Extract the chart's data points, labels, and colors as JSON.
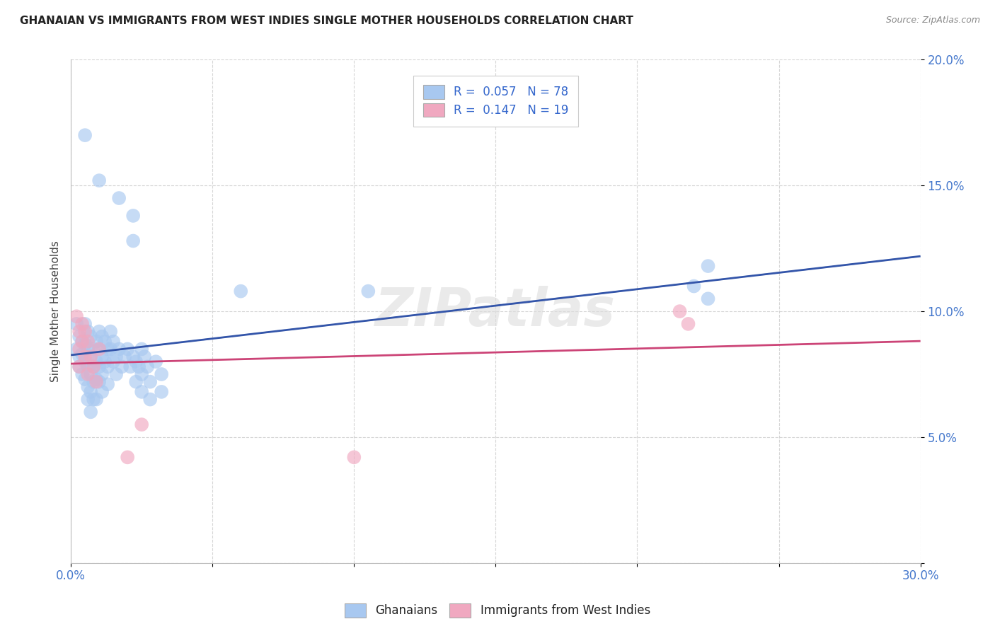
{
  "title": "GHANAIAN VS IMMIGRANTS FROM WEST INDIES SINGLE MOTHER HOUSEHOLDS CORRELATION CHART",
  "source": "Source: ZipAtlas.com",
  "ylabel": "Single Mother Households",
  "xmin": 0.0,
  "xmax": 0.3,
  "ymin": 0.0,
  "ymax": 0.2,
  "xticks": [
    0.0,
    0.05,
    0.1,
    0.15,
    0.2,
    0.25,
    0.3
  ],
  "yticks": [
    0.0,
    0.05,
    0.1,
    0.15,
    0.2
  ],
  "legend1_label": "R =  0.057   N = 78",
  "legend2_label": "R =  0.147   N = 19",
  "legend_bottom1": "Ghanaians",
  "legend_bottom2": "Immigrants from West Indies",
  "ghanaian_color": "#a8c8f0",
  "westindies_color": "#f0a8c0",
  "tick_color": "#4477cc",
  "watermark": "ZIPatlas",
  "ghanaian_line_color": "#3355aa",
  "westindies_line_color": "#cc4477",
  "ghanaian_points": [
    [
      0.002,
      0.095
    ],
    [
      0.002,
      0.085
    ],
    [
      0.003,
      0.09
    ],
    [
      0.003,
      0.082
    ],
    [
      0.003,
      0.078
    ],
    [
      0.004,
      0.088
    ],
    [
      0.004,
      0.083
    ],
    [
      0.004,
      0.075
    ],
    [
      0.005,
      0.095
    ],
    [
      0.005,
      0.087
    ],
    [
      0.005,
      0.08
    ],
    [
      0.005,
      0.073
    ],
    [
      0.006,
      0.092
    ],
    [
      0.006,
      0.085
    ],
    [
      0.006,
      0.078
    ],
    [
      0.006,
      0.07
    ],
    [
      0.006,
      0.065
    ],
    [
      0.007,
      0.09
    ],
    [
      0.007,
      0.082
    ],
    [
      0.007,
      0.075
    ],
    [
      0.007,
      0.068
    ],
    [
      0.007,
      0.06
    ],
    [
      0.008,
      0.085
    ],
    [
      0.008,
      0.078
    ],
    [
      0.008,
      0.072
    ],
    [
      0.008,
      0.065
    ],
    [
      0.009,
      0.088
    ],
    [
      0.009,
      0.08
    ],
    [
      0.009,
      0.073
    ],
    [
      0.009,
      0.065
    ],
    [
      0.01,
      0.092
    ],
    [
      0.01,
      0.085
    ],
    [
      0.01,
      0.078
    ],
    [
      0.01,
      0.072
    ],
    [
      0.011,
      0.09
    ],
    [
      0.011,
      0.082
    ],
    [
      0.011,
      0.075
    ],
    [
      0.011,
      0.068
    ],
    [
      0.012,
      0.088
    ],
    [
      0.012,
      0.08
    ],
    [
      0.013,
      0.085
    ],
    [
      0.013,
      0.078
    ],
    [
      0.013,
      0.071
    ],
    [
      0.014,
      0.092
    ],
    [
      0.014,
      0.085
    ],
    [
      0.015,
      0.088
    ],
    [
      0.015,
      0.08
    ],
    [
      0.016,
      0.082
    ],
    [
      0.016,
      0.075
    ],
    [
      0.017,
      0.085
    ],
    [
      0.018,
      0.078
    ],
    [
      0.019,
      0.082
    ],
    [
      0.02,
      0.085
    ],
    [
      0.021,
      0.078
    ],
    [
      0.022,
      0.082
    ],
    [
      0.023,
      0.08
    ],
    [
      0.023,
      0.072
    ],
    [
      0.024,
      0.078
    ],
    [
      0.025,
      0.085
    ],
    [
      0.025,
      0.075
    ],
    [
      0.025,
      0.068
    ],
    [
      0.026,
      0.082
    ],
    [
      0.027,
      0.078
    ],
    [
      0.028,
      0.072
    ],
    [
      0.028,
      0.065
    ],
    [
      0.03,
      0.08
    ],
    [
      0.032,
      0.075
    ],
    [
      0.032,
      0.068
    ],
    [
      0.005,
      0.17
    ],
    [
      0.01,
      0.152
    ],
    [
      0.017,
      0.145
    ],
    [
      0.022,
      0.138
    ],
    [
      0.022,
      0.128
    ],
    [
      0.06,
      0.108
    ],
    [
      0.105,
      0.108
    ],
    [
      0.22,
      0.11
    ],
    [
      0.225,
      0.105
    ],
    [
      0.225,
      0.118
    ]
  ],
  "westindies_points": [
    [
      0.002,
      0.098
    ],
    [
      0.003,
      0.092
    ],
    [
      0.003,
      0.085
    ],
    [
      0.003,
      0.078
    ],
    [
      0.004,
      0.095
    ],
    [
      0.004,
      0.088
    ],
    [
      0.005,
      0.092
    ],
    [
      0.005,
      0.082
    ],
    [
      0.006,
      0.088
    ],
    [
      0.006,
      0.075
    ],
    [
      0.007,
      0.082
    ],
    [
      0.008,
      0.078
    ],
    [
      0.009,
      0.072
    ],
    [
      0.01,
      0.085
    ],
    [
      0.02,
      0.042
    ],
    [
      0.025,
      0.055
    ],
    [
      0.1,
      0.042
    ],
    [
      0.215,
      0.1
    ],
    [
      0.218,
      0.095
    ]
  ]
}
